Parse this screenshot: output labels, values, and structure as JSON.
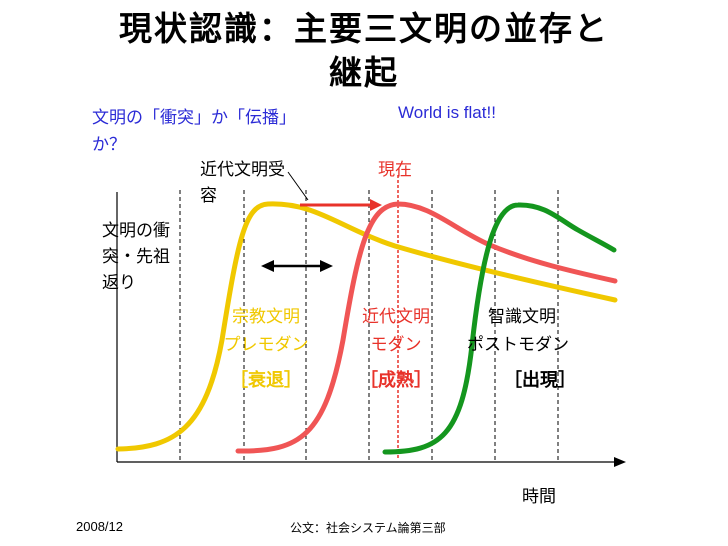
{
  "slide": {
    "title_line1": "現状認識：主要三文明の並存と",
    "title_line2": "継起",
    "subtitle_part1": "文明の「衝突」か「伝播」",
    "subtitle_english": "World is flat!!",
    "subtitle_part2": "か？",
    "modern_acceptance_line1": "近代文明受",
    "modern_acceptance_line2": "容",
    "present_label": "現在",
    "clash_line1": "文明の衝",
    "clash_line2": "突・先祖",
    "clash_line3": "返り",
    "x_axis_label": "時間",
    "footer_date": "2008/12",
    "footer_text": "公文：社会システム論第三部"
  },
  "civilizations": [
    {
      "name": "宗教文明",
      "era": "プレモダン",
      "phase": "［衰退］",
      "color": "#f0c800"
    },
    {
      "name": "近代文明",
      "era": "モダン",
      "phase": "［成熟］",
      "color": "#e8322a"
    },
    {
      "name": "智識文明",
      "era": "ポストモダン",
      "phase": "［出現］",
      "color": "#000000"
    }
  ],
  "colors": {
    "religious_curve": "#f0c800",
    "modern_curve": "#f05555",
    "knowledge_curve": "#14961e",
    "present_marker": "#e8322a",
    "arrow_black": "#000000"
  }
}
